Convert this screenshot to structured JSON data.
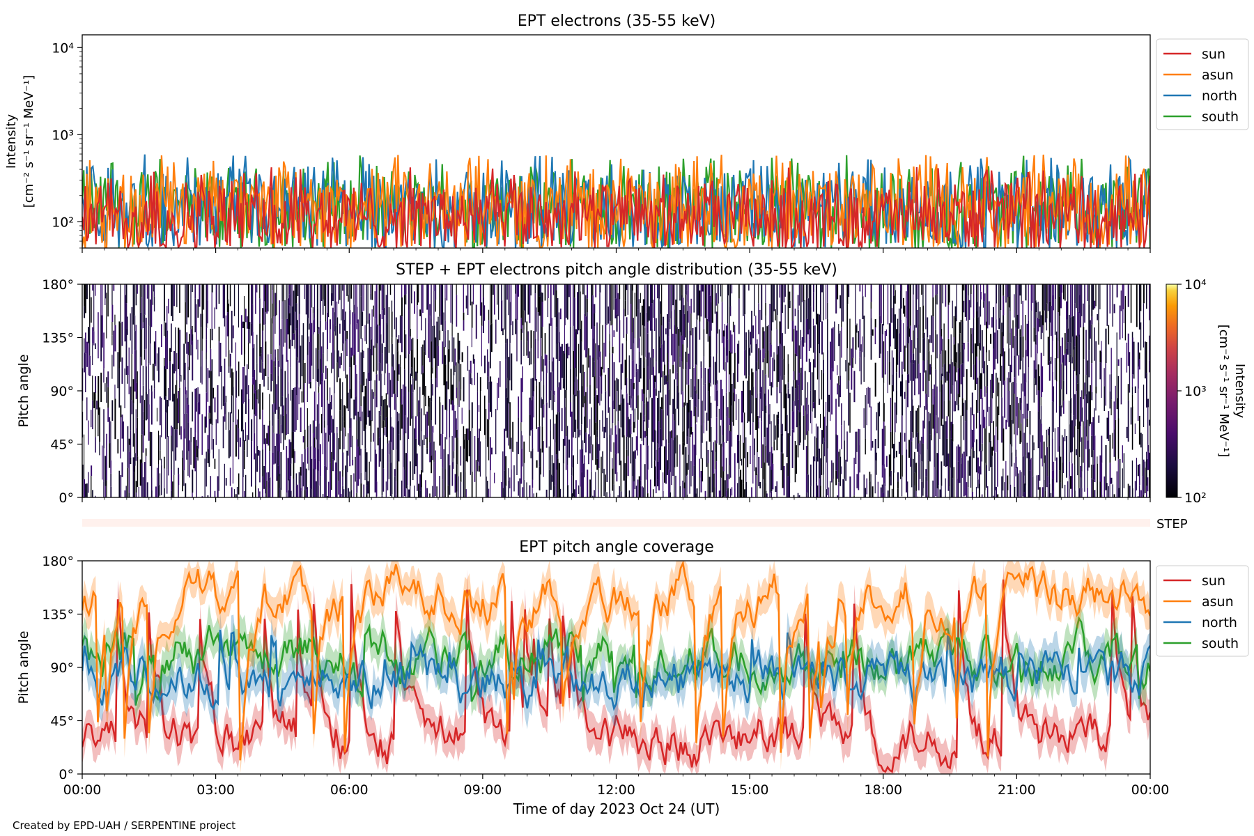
{
  "footer": {
    "credit": "Created by EPD-UAH / SERPENTINE project"
  },
  "colors": {
    "sun": "#d62728",
    "asun": "#ff7f0e",
    "north": "#1f77b4",
    "south": "#2ca02c"
  },
  "chart_data": [
    {
      "type": "line",
      "title": "EPT electrons (35-55 keV)",
      "ylabel": "Intensity",
      "yunit": "[cm⁻² s⁻¹ sr⁻¹ MeV⁻¹]",
      "yscale": "log",
      "ylim": [
        50,
        14000
      ],
      "yticks": [
        "10²",
        "10³",
        "10⁴"
      ],
      "x_range": [
        "00:00",
        "24:00"
      ],
      "legend": {
        "placement": "upper right, outside plot",
        "entries": [
          "sun",
          "asun",
          "north",
          "south"
        ]
      },
      "series": [
        {
          "name": "sun",
          "color": "#d62728",
          "typical_range": [
            50,
            250
          ]
        },
        {
          "name": "asun",
          "color": "#ff7f0e",
          "typical_range": [
            50,
            350
          ]
        },
        {
          "name": "north",
          "color": "#1f77b4",
          "typical_range": [
            50,
            350
          ]
        },
        {
          "name": "south",
          "color": "#2ca02c",
          "typical_range": [
            50,
            350
          ]
        }
      ]
    },
    {
      "type": "heatmap",
      "title": "STEP + EPT electrons pitch angle distribution (35-55 keV)",
      "ylabel": "Pitch angle",
      "yticks": [
        "0°",
        "45°",
        "90°",
        "135°",
        "180°"
      ],
      "ylim": [
        0,
        180
      ],
      "colorbar": {
        "label": "Intensity",
        "unit": "[cm⁻² s⁻¹ sr⁻¹ MeV⁻¹]",
        "ticks": [
          "10²",
          "10³",
          "10⁴"
        ],
        "range": [
          100,
          10000
        ],
        "colormap": "inferno"
      },
      "step_strip_label": "STEP"
    },
    {
      "type": "line",
      "title": "EPT pitch angle coverage",
      "ylabel": "Pitch angle",
      "xlabel": "Time of day 2023 Oct 24 (UT)",
      "yticks": [
        "0°",
        "45°",
        "90°",
        "135°",
        "180°"
      ],
      "ylim": [
        0,
        180
      ],
      "xticks": [
        "00:00",
        "03:00",
        "06:00",
        "09:00",
        "12:00",
        "15:00",
        "18:00",
        "21:00",
        "00:00"
      ],
      "legend": {
        "placement": "upper right, outside plot",
        "entries": [
          "sun",
          "asun",
          "north",
          "south"
        ]
      },
      "series": [
        {
          "name": "sun",
          "color": "#d62728",
          "typical_mean": 30
        },
        {
          "name": "asun",
          "color": "#ff7f0e",
          "typical_mean": 150
        },
        {
          "name": "north",
          "color": "#1f77b4",
          "typical_mean": 80
        },
        {
          "name": "south",
          "color": "#2ca02c",
          "typical_mean": 100
        }
      ]
    }
  ]
}
